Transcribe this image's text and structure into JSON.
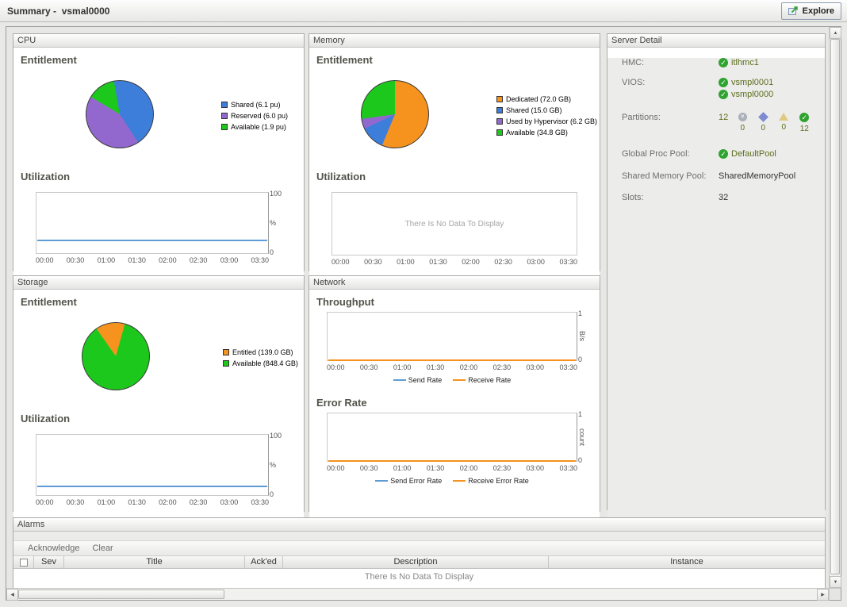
{
  "header": {
    "title": "Summary -  vsmal0000",
    "explore": "Explore"
  },
  "panels": {
    "cpu": {
      "title": "CPU",
      "entitlement_heading": "Entitlement",
      "utilization_heading": "Utilization",
      "pie": {
        "type": "pie",
        "rotate": -10,
        "slices": [
          {
            "label": "Shared (6.1 pu)",
            "value": 6.1,
            "color": "#3d7edb"
          },
          {
            "label": "Reserved (6.0 pu)",
            "value": 6.0,
            "color": "#9268cf"
          },
          {
            "label": "Available (1.9 pu)",
            "value": 1.9,
            "color": "#1dc81d"
          }
        ]
      },
      "util": {
        "type": "line",
        "ymax": "100",
        "ymin": "0",
        "unit": "%",
        "lines": [
          {
            "name": "cpu-utilization-line",
            "pct": 21,
            "color": "#5f9bd5"
          }
        ],
        "ticks": [
          "00:00",
          "00:30",
          "01:00",
          "01:30",
          "02:00",
          "02:30",
          "03:00",
          "03:30"
        ]
      }
    },
    "memory": {
      "title": "Memory",
      "entitlement_heading": "Entitlement",
      "utilization_heading": "Utilization",
      "pie": {
        "type": "pie",
        "rotate": 0,
        "slices": [
          {
            "label": "Dedicated (72.0 GB)",
            "value": 72.0,
            "color": "#f6921e"
          },
          {
            "label": "Shared (15.0 GB)",
            "value": 15.0,
            "color": "#3d7edb"
          },
          {
            "label": "Used by Hypervisor (6.2 GB)",
            "value": 6.2,
            "color": "#9268cf"
          },
          {
            "label": "Available (34.8 GB)",
            "value": 34.8,
            "color": "#1dc81d"
          }
        ]
      },
      "util": {
        "type": "line",
        "no_data": "There Is No Data To Display",
        "ticks": [
          "00:00",
          "00:30",
          "01:00",
          "01:30",
          "02:00",
          "02:30",
          "03:00",
          "03:30"
        ]
      }
    },
    "storage": {
      "title": "Storage",
      "entitlement_heading": "Entitlement",
      "utilization_heading": "Utilization",
      "pie": {
        "type": "pie",
        "rotate": -35,
        "slices": [
          {
            "label": "Entitled (139.0 GB)",
            "value": 139.0,
            "color": "#f6921e"
          },
          {
            "label": "Available (848.4 GB)",
            "value": 848.4,
            "color": "#1dc81d"
          }
        ]
      },
      "util": {
        "type": "line",
        "ymax": "100",
        "ymin": "0",
        "unit": "%",
        "lines": [
          {
            "name": "storage-utilization-line",
            "pct": 14,
            "color": "#5f9bd5"
          }
        ],
        "ticks": [
          "00:00",
          "00:30",
          "01:00",
          "01:30",
          "02:00",
          "02:30",
          "03:00",
          "03:30"
        ]
      }
    },
    "network": {
      "title": "Network",
      "throughput": {
        "heading": "Throughput",
        "type": "line",
        "ymax": "1",
        "ymin": "0",
        "unit": "B/s",
        "lines": [
          {
            "name": "send-rate-line",
            "pct": 0,
            "color": "#5f9bd5"
          },
          {
            "name": "receive-rate-line",
            "pct": 0,
            "color": "#f6921e"
          }
        ],
        "ticks": [
          "00:00",
          "00:30",
          "01:00",
          "01:30",
          "02:00",
          "02:30",
          "03:00",
          "03:30"
        ],
        "legend": [
          {
            "label": "Send Rate",
            "color": "#5f9bd5"
          },
          {
            "label": "Receive Rate",
            "color": "#f6921e"
          }
        ]
      },
      "error_rate": {
        "heading": "Error Rate",
        "type": "line",
        "ymax": "1",
        "ymin": "0",
        "unit": "count",
        "lines": [
          {
            "name": "send-error-rate-line",
            "pct": 0,
            "color": "#5f9bd5"
          },
          {
            "name": "receive-error-rate-line",
            "pct": 0,
            "color": "#f6921e"
          }
        ],
        "ticks": [
          "00:00",
          "00:30",
          "01:00",
          "01:30",
          "02:00",
          "02:30",
          "03:00",
          "03:30"
        ],
        "legend": [
          {
            "label": "Send Error Rate",
            "color": "#5f9bd5"
          },
          {
            "label": "Receive Error Rate",
            "color": "#f6921e"
          }
        ]
      }
    },
    "server_detail": {
      "title": "Server Detail",
      "hmc_label": "HMC:",
      "hmc_value": "itlhmc1",
      "vios_label": "VIOS:",
      "vios_values": [
        "vsmpl0001",
        "vsmpl0000"
      ],
      "partitions_label": "Partitions:",
      "partitions_total": "12",
      "partitions_counts": [
        "0",
        "0",
        "0",
        "12"
      ],
      "partition_state_icons": [
        "fatal-icon",
        "critical-icon",
        "warning-icon",
        "normal-icon"
      ],
      "global_proc_pool_label": "Global Proc Pool:",
      "global_proc_pool_value": "DefaultPool",
      "shared_memory_pool_label": "Shared Memory Pool:",
      "shared_memory_pool_value": "SharedMemoryPool",
      "slots_label": "Slots:",
      "slots_value": "32",
      "status_ok_color": "#2fa32f"
    },
    "alarms": {
      "title": "Alarms",
      "toolbar": [
        "Acknowledge",
        "Clear"
      ],
      "columns": [
        "Sev",
        "Title",
        "Ack'ed",
        "Description",
        "Instance"
      ],
      "no_data": "There Is No Data To Display"
    }
  }
}
